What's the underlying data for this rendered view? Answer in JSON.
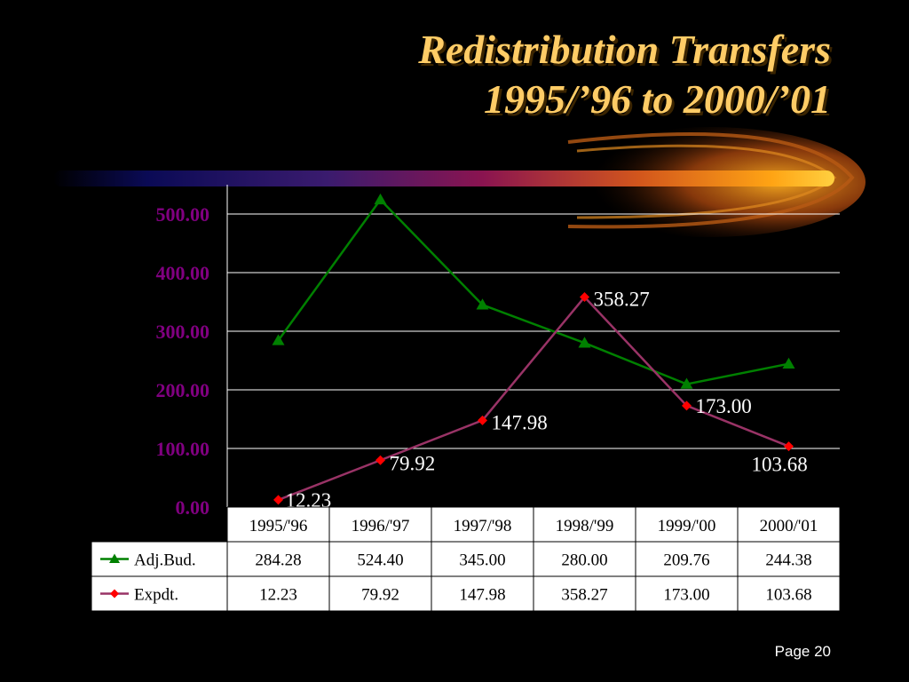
{
  "slide": {
    "title_line1": "Redistribution Transfers",
    "title_line2": "1995/’96 to 2000/’01",
    "page_label": "Page 20"
  },
  "colors": {
    "background": "#000000",
    "title": "#FFCC66",
    "y_axis_labels": "#800080",
    "adj_bud_series": "#008000",
    "expdt_series": "#993366",
    "expdt_marker": "#FF0000",
    "gridlines": "#FFFFFF",
    "table_bg": "#FFFFFF",
    "table_text": "#000000"
  },
  "chart_data": {
    "type": "line",
    "categories": [
      "1995/'96",
      "1996/'97",
      "1997/'98",
      "1998/'99",
      "1999/'00",
      "2000/'01"
    ],
    "series": [
      {
        "name": "Adj.Bud.",
        "marker": "triangle",
        "values": [
          284.28,
          524.4,
          345.0,
          280.0,
          209.76,
          244.38
        ],
        "value_texts": [
          "284.28",
          "524.40",
          "345.00",
          "280.00",
          "209.76",
          "244.38"
        ],
        "data_labels": []
      },
      {
        "name": "Expdt.",
        "marker": "diamond",
        "values": [
          12.23,
          79.92,
          147.98,
          358.27,
          173.0,
          103.68
        ],
        "value_texts": [
          "12.23",
          "79.92",
          "147.98",
          "358.27",
          "173.00",
          "103.68"
        ],
        "data_labels": [
          "12.23",
          "79.92",
          "147.98",
          "358.27",
          "173.00",
          "103.68"
        ]
      }
    ],
    "yticks": [
      "0.00",
      "100.00",
      "200.00",
      "300.00",
      "400.00",
      "500.00"
    ],
    "ylim": [
      0,
      550
    ],
    "xlabel": "",
    "ylabel": "",
    "grid": true,
    "legend": "data-table-left",
    "data_table": true
  }
}
